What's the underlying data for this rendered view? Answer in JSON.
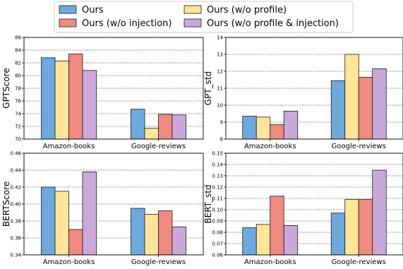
{
  "legend": {
    "placement": "top-center",
    "entries": [
      {
        "name": "Ours",
        "color": "#6fa8dc"
      },
      {
        "name": "Ours (w/o profile)",
        "color": "#ffe599"
      },
      {
        "name": "Ours (w/o injection)",
        "color": "#ef8a80"
      },
      {
        "name": "Ours (w/o profile & injection)",
        "color": "#c9a9d9"
      }
    ]
  },
  "chart_data": [
    {
      "type": "bar",
      "ylabel": "GPTScore",
      "categories": [
        "Amazon-books",
        "Google-reviews"
      ],
      "ylim": [
        70,
        86
      ],
      "yticks": [
        70,
        72,
        74,
        76,
        78,
        80,
        82,
        84,
        86
      ],
      "grid": true,
      "series": [
        {
          "name": "Ours",
          "values": [
            82.8,
            74.7
          ]
        },
        {
          "name": "Ours (w/o profile)",
          "values": [
            82.3,
            71.7
          ]
        },
        {
          "name": "Ours (w/o injection)",
          "values": [
            83.4,
            73.9
          ]
        },
        {
          "name": "Ours (w/o profile & injection)",
          "values": [
            80.8,
            73.8
          ]
        }
      ]
    },
    {
      "type": "bar",
      "ylabel": "GPT_std",
      "categories": [
        "Amazon-books",
        "Google-reviews"
      ],
      "ylim": [
        8,
        14
      ],
      "yticks": [
        8,
        9,
        10,
        11,
        12,
        13,
        14
      ],
      "grid": true,
      "series": [
        {
          "name": "Ours",
          "values": [
            9.35,
            11.45
          ]
        },
        {
          "name": "Ours (w/o profile)",
          "values": [
            9.3,
            13.0
          ]
        },
        {
          "name": "Ours (w/o injection)",
          "values": [
            8.85,
            11.65
          ]
        },
        {
          "name": "Ours (w/o profile & injection)",
          "values": [
            9.65,
            12.15
          ]
        }
      ]
    },
    {
      "type": "bar",
      "ylabel": "BERTScore",
      "categories": [
        "Amazon-books",
        "Google-reviews"
      ],
      "ylim": [
        0.34,
        0.46
      ],
      "yticks": [
        0.34,
        0.36,
        0.38,
        0.4,
        0.42,
        0.44,
        0.46
      ],
      "tick_decimals": 2,
      "grid": true,
      "series": [
        {
          "name": "Ours",
          "values": [
            0.42,
            0.395
          ]
        },
        {
          "name": "Ours (w/o profile)",
          "values": [
            0.415,
            0.388
          ]
        },
        {
          "name": "Ours (w/o injection)",
          "values": [
            0.37,
            0.392
          ]
        },
        {
          "name": "Ours (w/o profile & injection)",
          "values": [
            0.438,
            0.373
          ]
        }
      ]
    },
    {
      "type": "bar",
      "ylabel": "BERT_std",
      "categories": [
        "Amazon-books",
        "Google-reviews"
      ],
      "ylim": [
        0.06,
        0.15
      ],
      "yticks": [
        0.06,
        0.07,
        0.08,
        0.09,
        0.1,
        0.11,
        0.12,
        0.13,
        0.14,
        0.15
      ],
      "tick_decimals": 2,
      "grid": true,
      "series": [
        {
          "name": "Ours",
          "values": [
            0.084,
            0.097
          ]
        },
        {
          "name": "Ours (w/o profile)",
          "values": [
            0.087,
            0.109
          ]
        },
        {
          "name": "Ours (w/o injection)",
          "values": [
            0.112,
            0.109
          ]
        },
        {
          "name": "Ours (w/o profile & injection)",
          "values": [
            0.086,
            0.135
          ]
        }
      ]
    }
  ]
}
